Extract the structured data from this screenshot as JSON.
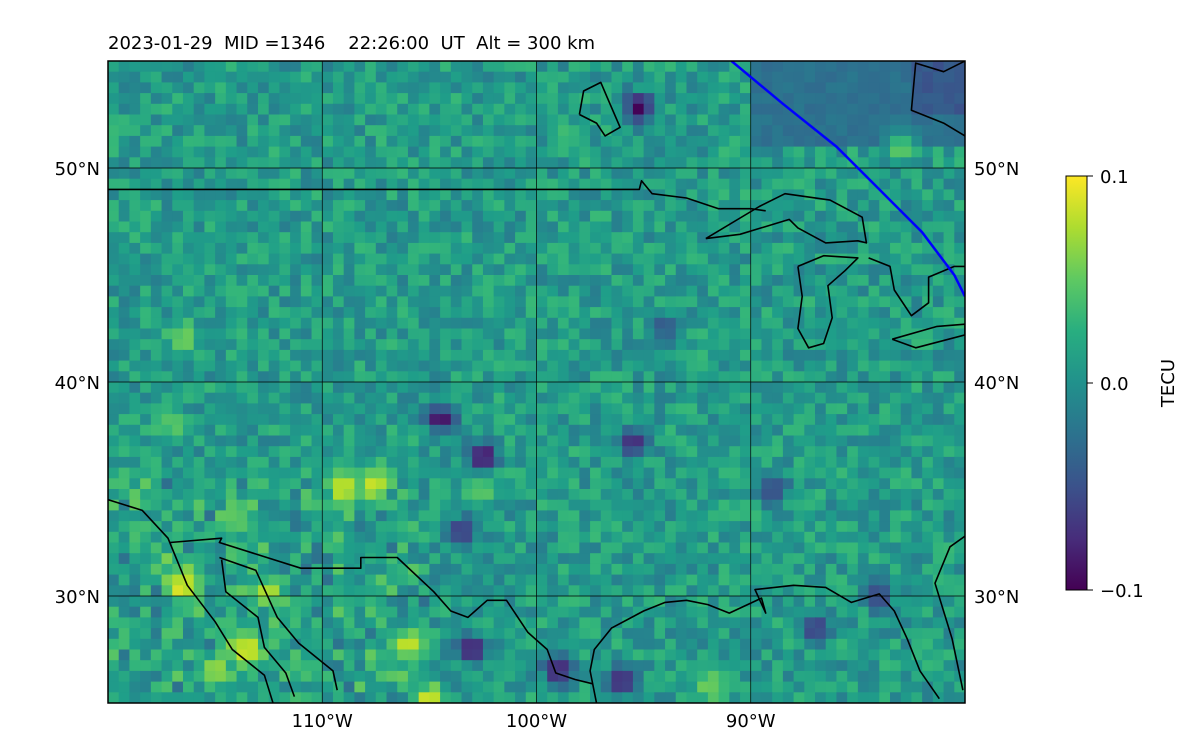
{
  "chart_data": {
    "type": "heatmap",
    "title": "2023-01-29  MID =1346    22:26:00  UT  Alt = 300 km",
    "map_extent": {
      "lon": [
        -120,
        -80
      ],
      "lat": [
        25,
        55
      ]
    },
    "x_ticks": [
      {
        "lon": -110,
        "label": "110°W"
      },
      {
        "lon": -100,
        "label": "100°W"
      },
      {
        "lon": -90,
        "label": "90°W"
      }
    ],
    "y_ticks": [
      {
        "lat": 50,
        "label": "50°N"
      },
      {
        "lat": 40,
        "label": "40°N"
      },
      {
        "lat": 30,
        "label": "30°N"
      }
    ],
    "grid": true,
    "colorbar": {
      "label": "TECU",
      "colormap": "viridis",
      "range": [
        -0.1,
        0.1
      ],
      "ticks": [
        {
          "value": 0.1,
          "label": "0.1"
        },
        {
          "value": 0.0,
          "label": "0.0"
        },
        {
          "value": -0.1,
          "label": "−0.1"
        }
      ]
    },
    "field_resolution_deg": {
      "lon": 0.5,
      "lat": 0.5
    },
    "hotspots": [
      {
        "lon": -113.5,
        "lat": 27.5,
        "value": 0.1
      },
      {
        "lon": -116.5,
        "lat": 30.5,
        "value": 0.1
      },
      {
        "lon": -109,
        "lat": 35,
        "value": 0.1
      },
      {
        "lon": -106,
        "lat": 27.7,
        "value": 0.09
      },
      {
        "lon": -115,
        "lat": 26.5,
        "value": 0.08
      },
      {
        "lon": -112.5,
        "lat": 30.2,
        "value": 0.08
      },
      {
        "lon": -105,
        "lat": 25.2,
        "value": 0.09
      },
      {
        "lon": -107.5,
        "lat": 35.3,
        "value": 0.09
      },
      {
        "lon": -116.5,
        "lat": 42,
        "value": 0.06
      },
      {
        "lon": -117,
        "lat": 38,
        "value": 0.05
      },
      {
        "lon": -92,
        "lat": 25.8,
        "value": 0.06
      },
      {
        "lon": -83,
        "lat": 51,
        "value": 0.05
      },
      {
        "lon": -114,
        "lat": 33.5,
        "value": 0.06
      },
      {
        "lon": -102.5,
        "lat": 35,
        "value": 0.05
      },
      {
        "lon": -98.5,
        "lat": 51.5,
        "value": 0.04
      },
      {
        "lon": -92.5,
        "lat": 41,
        "value": 0.04
      }
    ],
    "coldspots": [
      {
        "lon": -95.2,
        "lat": 52.8,
        "value": -0.1
      },
      {
        "lon": -102.5,
        "lat": 36.5,
        "value": -0.1
      },
      {
        "lon": -104.5,
        "lat": 38.3,
        "value": -0.1
      },
      {
        "lon": -95.5,
        "lat": 37.2,
        "value": -0.08
      },
      {
        "lon": -99,
        "lat": 26.5,
        "value": -0.09
      },
      {
        "lon": -103,
        "lat": 27.5,
        "value": -0.09
      },
      {
        "lon": -96,
        "lat": 26,
        "value": -0.09
      },
      {
        "lon": -87,
        "lat": 28.5,
        "value": -0.07
      },
      {
        "lon": -103.5,
        "lat": 33,
        "value": -0.07
      },
      {
        "lon": -89,
        "lat": 35,
        "value": -0.06
      },
      {
        "lon": -94,
        "lat": 42.5,
        "value": -0.05
      },
      {
        "lon": -84,
        "lat": 30,
        "value": -0.06
      }
    ],
    "smooth_regions": [
      {
        "lon": [
          -90,
          -80
        ],
        "lat": [
          51,
          55
        ],
        "value": -0.025
      },
      {
        "lon": [
          -82.5,
          -80
        ],
        "lat": [
          52.5,
          55
        ],
        "value": -0.045
      }
    ],
    "terminator_line": {
      "color": "#0000ff",
      "points": [
        [
          -90.9,
          55
        ],
        [
          -88.5,
          53
        ],
        [
          -86,
          51
        ],
        [
          -84,
          49
        ],
        [
          -82,
          47
        ],
        [
          -80.5,
          45
        ],
        [
          -80,
          44
        ]
      ]
    },
    "coastlines": [
      {
        "name": "us-canada-border",
        "points": [
          [
            -120,
            49
          ],
          [
            -95.2,
            49
          ],
          [
            -95.1,
            49.4
          ],
          [
            -94.6,
            48.8
          ],
          [
            -93,
            48.6
          ],
          [
            -91.5,
            48.1
          ],
          [
            -90,
            48.1
          ],
          [
            -89.3,
            48.0
          ]
        ]
      },
      {
        "name": "hudson-bay-coast",
        "points": [
          [
            -80,
            55
          ],
          [
            -81,
            54.5
          ],
          [
            -82.3,
            54.9
          ],
          [
            -82.5,
            52.7
          ],
          [
            -81,
            52.1
          ],
          [
            -80,
            51.5
          ]
        ]
      },
      {
        "name": "lake-winnipeg",
        "points": [
          [
            -98,
            52.5
          ],
          [
            -97.8,
            53.6
          ],
          [
            -97,
            54
          ],
          [
            -96.7,
            53.3
          ],
          [
            -96.1,
            51.9
          ],
          [
            -96.8,
            51.5
          ],
          [
            -97.2,
            52.1
          ],
          [
            -98,
            52.5
          ]
        ]
      },
      {
        "name": "lake-superior",
        "points": [
          [
            -92.1,
            46.7
          ],
          [
            -90.5,
            46.9
          ],
          [
            -88.2,
            47.6
          ],
          [
            -87.8,
            47.2
          ],
          [
            -86.5,
            46.5
          ],
          [
            -85,
            46.6
          ],
          [
            -84.6,
            46.5
          ],
          [
            -84.8,
            47.7
          ],
          [
            -86.3,
            48.5
          ],
          [
            -88.4,
            48.8
          ],
          [
            -89.6,
            48.2
          ],
          [
            -92.1,
            46.7
          ]
        ]
      },
      {
        "name": "lake-michigan",
        "points": [
          [
            -87.8,
            45.4
          ],
          [
            -87.6,
            44.0
          ],
          [
            -87.8,
            42.5
          ],
          [
            -87.3,
            41.6
          ],
          [
            -86.6,
            41.8
          ],
          [
            -86.2,
            43.0
          ],
          [
            -86.4,
            44.5
          ],
          [
            -85.6,
            45.2
          ],
          [
            -85,
            45.8
          ],
          [
            -86.6,
            45.9
          ],
          [
            -87.8,
            45.4
          ]
        ]
      },
      {
        "name": "lake-huron",
        "points": [
          [
            -84.5,
            45.8
          ],
          [
            -83.5,
            45.4
          ],
          [
            -83.3,
            44.3
          ],
          [
            -82.5,
            43.1
          ],
          [
            -81.7,
            43.7
          ],
          [
            -81.7,
            44.9
          ],
          [
            -80.5,
            45.4
          ],
          [
            -80,
            45.4
          ]
        ]
      },
      {
        "name": "lake-erie",
        "points": [
          [
            -83.4,
            42.0
          ],
          [
            -81.3,
            42.6
          ],
          [
            -80,
            42.7
          ],
          [
            -80,
            42.2
          ],
          [
            -82.3,
            41.6
          ],
          [
            -83.4,
            42.0
          ]
        ]
      },
      {
        "name": "mexico-border",
        "points": [
          [
            -117.1,
            32.5
          ],
          [
            -114.7,
            32.7
          ],
          [
            -114.8,
            32.5
          ],
          [
            -111,
            31.3
          ],
          [
            -108.2,
            31.3
          ],
          [
            -108.2,
            31.8
          ],
          [
            -106.5,
            31.8
          ],
          [
            -104.8,
            30.2
          ],
          [
            -104,
            29.3
          ],
          [
            -103.2,
            29
          ],
          [
            -102.3,
            29.8
          ],
          [
            -101.4,
            29.8
          ],
          [
            -100.4,
            28.3
          ],
          [
            -99.5,
            27.5
          ],
          [
            -99.1,
            26.4
          ],
          [
            -98.2,
            26.1
          ],
          [
            -97.4,
            25.9
          ]
        ]
      },
      {
        "name": "gulf-coast",
        "points": [
          [
            -97.2,
            25
          ],
          [
            -97.5,
            26.5
          ],
          [
            -97.3,
            27.5
          ],
          [
            -96.5,
            28.5
          ],
          [
            -95,
            29.3
          ],
          [
            -94,
            29.7
          ],
          [
            -93,
            29.8
          ],
          [
            -92,
            29.6
          ],
          [
            -91,
            29.2
          ],
          [
            -89.5,
            29.9
          ],
          [
            -89.3,
            29.2
          ],
          [
            -89.8,
            30.3
          ],
          [
            -88,
            30.5
          ],
          [
            -86.5,
            30.4
          ],
          [
            -85.3,
            29.7
          ],
          [
            -84,
            30.1
          ],
          [
            -83.3,
            29.3
          ],
          [
            -82.7,
            28
          ],
          [
            -82.1,
            26.5
          ],
          [
            -81.2,
            25.2
          ]
        ]
      },
      {
        "name": "florida-atlantic-coast",
        "points": [
          [
            -80.1,
            25.6
          ],
          [
            -80.6,
            28
          ],
          [
            -81.4,
            30.6
          ],
          [
            -80.7,
            32.3
          ],
          [
            -80,
            32.8
          ]
        ]
      },
      {
        "name": "pacific-coast",
        "points": [
          [
            -120,
            34.5
          ],
          [
            -118.4,
            34
          ],
          [
            -117.2,
            32.7
          ],
          [
            -116.3,
            30.5
          ],
          [
            -115,
            28.8
          ],
          [
            -114.2,
            27.5
          ],
          [
            -112.7,
            26.3
          ],
          [
            -112.3,
            25
          ]
        ]
      },
      {
        "name": "gulf-of-california-west",
        "points": [
          [
            -114.7,
            31.7
          ],
          [
            -114.5,
            30.2
          ],
          [
            -113,
            29
          ],
          [
            -112.7,
            27.6
          ],
          [
            -111.7,
            26.4
          ],
          [
            -111.3,
            25.3
          ]
        ]
      },
      {
        "name": "gulf-of-california-east",
        "points": [
          [
            -114.8,
            31.8
          ],
          [
            -113.1,
            31.2
          ],
          [
            -112.1,
            29
          ],
          [
            -111.1,
            27.8
          ],
          [
            -109.5,
            26.5
          ],
          [
            -109.3,
            25.6
          ]
        ]
      }
    ]
  }
}
